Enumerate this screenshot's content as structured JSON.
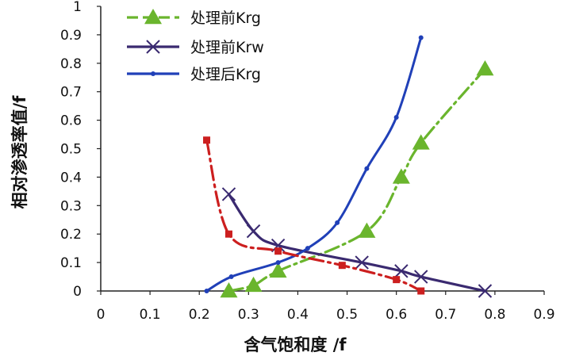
{
  "chart_data": {
    "type": "line",
    "title": "",
    "xlabel": "含气饱和度 /f",
    "ylabel": "相对渗透率值/f",
    "xlim": [
      0,
      0.9
    ],
    "ylim": [
      0,
      1
    ],
    "x_ticks": [
      "0",
      "0.1",
      "0.2",
      "0.3",
      "0.4",
      "0.5",
      "0.6",
      "0.7",
      "0.8",
      "0.9"
    ],
    "y_ticks": [
      "0",
      "0.1",
      "0.2",
      "0.3",
      "0.4",
      "0.5",
      "0.6",
      "0.7",
      "0.8",
      "0.9",
      "1"
    ],
    "grid": false,
    "legend_position": "top-left",
    "series": [
      {
        "name": "处理前Krg",
        "color": "#6ab52d",
        "marker": "triangle",
        "line_style": "dash-dot",
        "x": [
          0.26,
          0.31,
          0.36,
          0.54,
          0.61,
          0.65,
          0.78
        ],
        "y": [
          0.0,
          0.02,
          0.07,
          0.21,
          0.4,
          0.52,
          0.78
        ]
      },
      {
        "name": "处理前Krw",
        "color": "#3a2a70",
        "marker": "x",
        "line_style": "solid",
        "x": [
          0.26,
          0.31,
          0.36,
          0.53,
          0.61,
          0.65,
          0.78
        ],
        "y": [
          0.34,
          0.21,
          0.16,
          0.1,
          0.07,
          0.05,
          0.0
        ]
      },
      {
        "name": "处理后Krg",
        "color": "#2040b8",
        "marker": "dot",
        "line_style": "solid",
        "x": [
          0.215,
          0.265,
          0.36,
          0.42,
          0.48,
          0.54,
          0.6,
          0.65
        ],
        "y": [
          0.0,
          0.05,
          0.1,
          0.15,
          0.24,
          0.43,
          0.61,
          0.89
        ]
      },
      {
        "color": "#cc1f1f",
        "marker": "square",
        "line_style": "dash-dot",
        "x": [
          0.215,
          0.26,
          0.36,
          0.49,
          0.6,
          0.65
        ],
        "y": [
          0.53,
          0.2,
          0.14,
          0.09,
          0.04,
          0.0
        ]
      }
    ]
  }
}
